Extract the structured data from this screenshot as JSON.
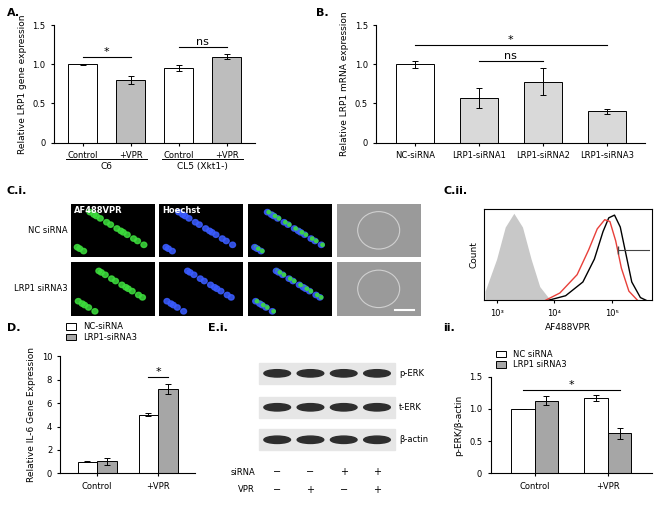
{
  "chart_data": [
    {
      "type": "bar",
      "title": "A.",
      "y_label": "Relative LRP1 gene expression",
      "categories": [
        "Control",
        "+VPR",
        "Control",
        "+VPR"
      ],
      "groups": [
        {
          "label": "C6",
          "categories": [
            0,
            1
          ]
        },
        {
          "label": "CL5 (Xkt1-)",
          "categories": [
            2,
            3
          ]
        }
      ],
      "values": [
        1.0,
        0.8,
        0.95,
        1.1
      ],
      "errors": [
        0.01,
        0.05,
        0.04,
        0.03
      ],
      "colors": [
        "#ffffff",
        "#bdbdbd",
        "#ffffff",
        "#bdbdbd"
      ],
      "ylim": [
        0,
        1.5
      ],
      "yticks": [
        0,
        0.5,
        {
          "value": 1,
          "label": "1.0"
        },
        1.5
      ],
      "annotations": [
        {
          "text": "*",
          "from": 0,
          "to": 1
        },
        {
          "text": "ns",
          "from": 2,
          "to": 3
        }
      ]
    },
    {
      "type": "bar",
      "title": "B.",
      "y_label": "Relative LRP1 mRNA expression",
      "categories": [
        "NC-siRNA",
        "LRP1-siRNA1",
        "LRP1-siRNA2",
        "LRP1-siRNA3"
      ],
      "values": [
        1.0,
        0.57,
        0.78,
        0.4
      ],
      "errors": [
        0.04,
        0.13,
        0.17,
        0.03
      ],
      "colors": [
        "#ffffff",
        "#d9d9d9",
        "#d9d9d9",
        "#d9d9d9"
      ],
      "ylim": [
        0,
        1.5
      ],
      "yticks": [
        0,
        0.5,
        {
          "value": 1,
          "label": "1.0"
        },
        1.5
      ],
      "annotations": [
        {
          "text": "ns",
          "from": 1,
          "to": 2
        },
        {
          "text": "*",
          "from": 0,
          "to": 3
        }
      ]
    },
    {
      "type": "line",
      "title": "C.ii.",
      "x_label": "AF488VPR",
      "y_label": "Count",
      "log": "x",
      "xlim": [
        600,
        500000
      ],
      "xticks": [
        {
          "value": 1000,
          "label": "10³"
        },
        {
          "value": 10000,
          "label": "10⁴"
        },
        {
          "value": 100000,
          "label": "10⁵"
        }
      ],
      "ylim": [
        0,
        100
      ],
      "tick_labels": "x",
      "series": [
        {
          "type": "area",
          "color": "#c8c8c8",
          "x": [
            631,
            1000,
            1413,
            1995,
            2818,
            3981,
            5623,
            7943,
            10000
          ],
          "values": [
            10,
            45,
            80,
            95,
            80,
            45,
            15,
            3,
            0
          ]
        },
        {
          "color": "#000000",
          "x": [
            7943,
            15849,
            31623,
            50119,
            70795,
            89125,
            112202,
            141254,
            177828,
            223872,
            316228,
            398107
          ],
          "values": [
            0,
            5,
            20,
            45,
            75,
            90,
            93,
            80,
            50,
            20,
            3,
            0
          ]
        },
        {
          "color": "#e8403a",
          "x": [
            7079,
            12589,
            25119,
            39811,
            56234,
            75858,
            93325,
            117490,
            147911,
            199526,
            281838
          ],
          "values": [
            0,
            8,
            28,
            55,
            78,
            88,
            86,
            65,
            35,
            10,
            0
          ]
        }
      ],
      "gate": {
        "x": [
          130000,
          450000
        ],
        "y": 55
      }
    },
    {
      "type": "bar",
      "title": "D.",
      "y_label": "Relative IL-6 Gene Expression",
      "categories": [
        "Control",
        "+VPR"
      ],
      "series": [
        {
          "name": "NC-siRNA",
          "color": "#ffffff",
          "values": [
            1.0,
            5.0
          ],
          "errors": [
            0.03,
            0.12
          ]
        },
        {
          "name": "LRP1-siRNA3",
          "color": "#a6a6a6",
          "values": [
            1.05,
            7.2
          ],
          "errors": [
            0.3,
            0.45
          ]
        }
      ],
      "ylim": [
        0,
        10
      ],
      "yticks": [
        0,
        2,
        4,
        6,
        8,
        10
      ],
      "legend": "upper left",
      "annotations": [
        {
          "text": "*",
          "from": [
            1,
            0
          ],
          "to": [
            1,
            1
          ]
        }
      ]
    },
    {
      "type": "bar",
      "title": "ii.",
      "y_label": "p-ERK/β-actin",
      "categories": [
        "Control",
        "+VPR"
      ],
      "series": [
        {
          "name": "NC siRNA",
          "color": "#ffffff",
          "values": [
            1.0,
            1.17
          ],
          "errors": [
            0.0,
            0.04
          ]
        },
        {
          "name": "LRP1 siRNA3",
          "color": "#a6a6a6",
          "values": [
            1.13,
            0.62
          ],
          "errors": [
            0.07,
            0.08
          ]
        }
      ],
      "ylim": [
        0,
        1.5
      ],
      "yticks": [
        0,
        0.5,
        {
          "value": 1,
          "label": "1.0"
        },
        1.5
      ],
      "legend": "upper left",
      "annotations": [
        {
          "text": "*",
          "from": [
            0,
            0
          ],
          "to": [
            1,
            1
          ]
        }
      ]
    }
  ],
  "micrographs": {
    "title": "C.i.",
    "channels": [
      "AF488VPR",
      "Hoechst"
    ],
    "rows": [
      "NC siRNA",
      "LRP1 siRNA3"
    ]
  },
  "blot": {
    "title": "E.i.",
    "bands": [
      "p-ERK",
      "t-ERK",
      "β-actin"
    ],
    "conditions": [
      {
        "label": "siRNA",
        "lanes": [
          "−",
          "−",
          "+",
          "+"
        ]
      },
      {
        "label": "VPR",
        "lanes": [
          "−",
          "+",
          "−",
          "+"
        ]
      }
    ]
  }
}
